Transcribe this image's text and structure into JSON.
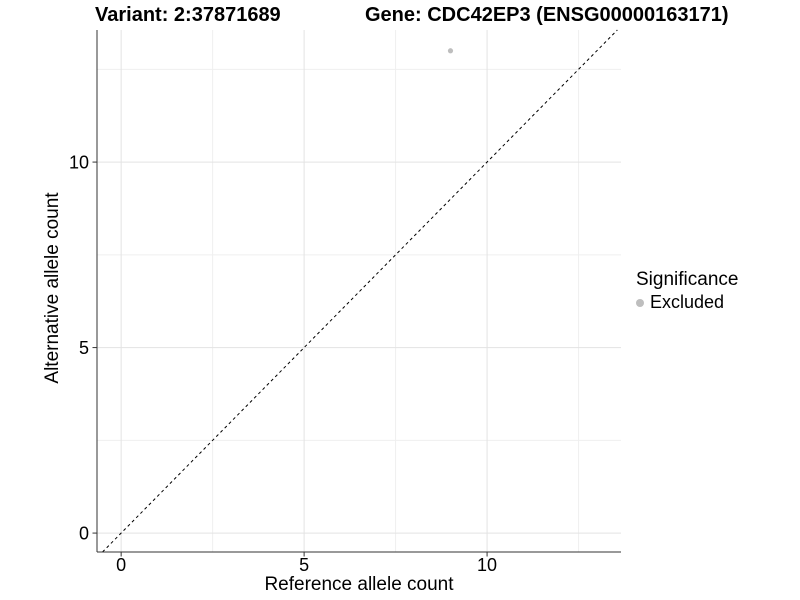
{
  "header": {
    "variant_title": "Variant: 2:37871689",
    "gene_title": "Gene: CDC42EP3 (ENSG00000163171)"
  },
  "legend": {
    "title": "Significance",
    "items": [
      {
        "label": "Excluded",
        "color": "#bebebe"
      }
    ]
  },
  "chart_data": {
    "type": "scatter",
    "title": "",
    "xlabel": "Reference allele count",
    "ylabel": "Alternative allele count",
    "xlim": [
      -0.66,
      13.66
    ],
    "ylim": [
      -0.51,
      13.56
    ],
    "xticks": [
      0,
      5,
      10
    ],
    "yticks": [
      0,
      5,
      10
    ],
    "xticks_minor": [
      2.5,
      7.5,
      12.5
    ],
    "yticks_minor": [
      2.5,
      7.5,
      12.5
    ],
    "grid": true,
    "legend_position": "right",
    "series": [
      {
        "name": "Excluded",
        "color": "#bebebe",
        "points": [
          [
            9,
            13
          ]
        ]
      }
    ],
    "reference_line": {
      "kind": "identity",
      "dash": "dashed",
      "color": "#000000"
    }
  },
  "colors": {
    "background": "#ffffff",
    "grid_major": "#e3e3e3",
    "grid_minor": "#efefef",
    "axis": "#333333",
    "tick": "#333333",
    "text": "#000000"
  }
}
